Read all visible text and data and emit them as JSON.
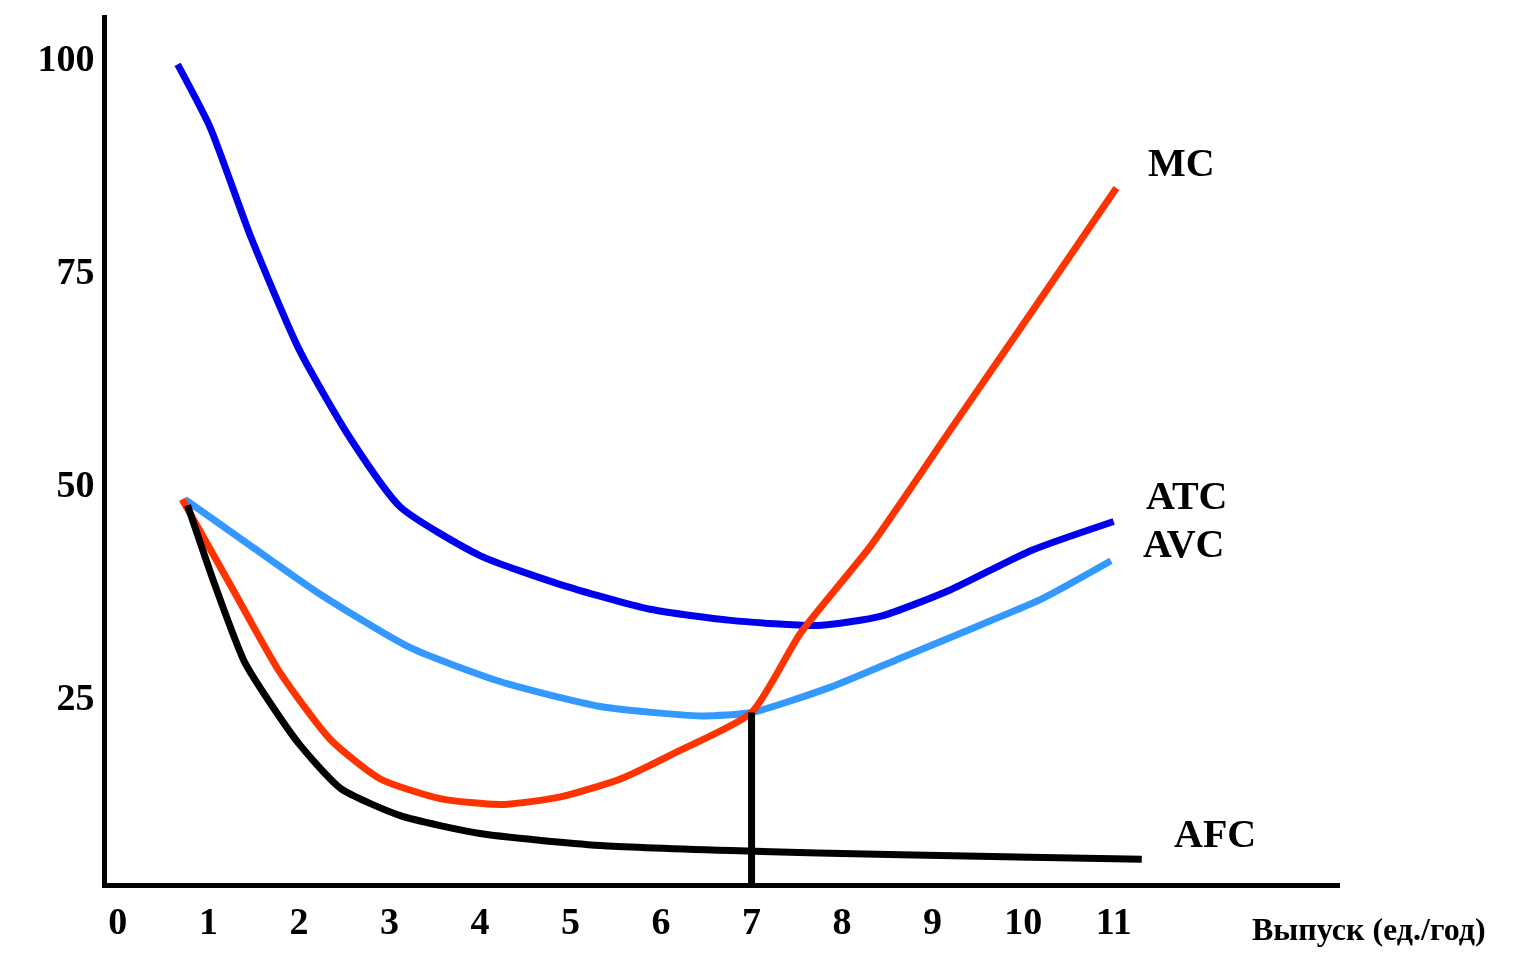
{
  "chart_data": {
    "type": "line",
    "xlabel": "Выпуск (ед./год)",
    "xlim": [
      -0.12,
      13.5
    ],
    "ylim": [
      3.2,
      105
    ],
    "xticks": [
      0,
      1,
      2,
      3,
      4,
      5,
      6,
      7,
      8,
      9,
      10,
      11
    ],
    "yticks": [
      25,
      50,
      75,
      100
    ],
    "legend": false,
    "marker": "none",
    "line_style": "solid",
    "series": [
      {
        "name": "ATC",
        "color": "#0000ee",
        "x": [
          0.66,
          1.02,
          1.46,
          2.01,
          2.57,
          3.12,
          4.0,
          4.89,
          5.88,
          6.77,
          7.74,
          8.43,
          9.2,
          10.09,
          11.0
        ],
        "values": [
          99.2,
          91.8,
          79.2,
          65.6,
          55.3,
          47.3,
          41.6,
          38.2,
          35.3,
          34.0,
          33.4,
          34.5,
          37.6,
          42.2,
          45.6
        ]
      },
      {
        "name": "AVC",
        "color": "#3399ff",
        "x": [
          0.74,
          1.46,
          2.23,
          3.23,
          4.23,
          5.33,
          6.44,
          7.0,
          7.88,
          8.65,
          9.31,
          10.2,
          10.97
        ],
        "values": [
          48.2,
          42.8,
          37.1,
          30.8,
          26.8,
          23.9,
          22.8,
          23.2,
          26.2,
          29.6,
          32.5,
          36.5,
          41.0
        ]
      },
      {
        "name": "MC",
        "color": "#ff3300",
        "x": [
          0.71,
          1.24,
          1.79,
          2.35,
          2.9,
          3.56,
          4.23,
          4.89,
          5.55,
          6.22,
          7.0,
          7.54,
          8.32,
          9.2,
          10.09,
          11.03
        ],
        "values": [
          48.2,
          38.2,
          27.9,
          20.0,
          15.4,
          13.1,
          12.4,
          13.3,
          15.4,
          18.8,
          23.2,
          32.5,
          42.8,
          56.4,
          70.1,
          84.7
        ]
      },
      {
        "name": "AFC",
        "color": "#000000",
        "x": [
          0.77,
          1.07,
          1.4,
          1.74,
          2.01,
          2.46,
          3.12,
          4.0,
          5.33,
          6.77,
          8.65,
          11.31
        ],
        "values": [
          47.5,
          38.2,
          29.1,
          23.4,
          19.4,
          14.3,
          11.1,
          9.0,
          7.6,
          7.0,
          6.5,
          6.0
        ]
      },
      {
        "color": "#000000",
        "x": [
          7,
          7
        ],
        "values": [
          3.2,
          23.2
        ]
      }
    ]
  }
}
